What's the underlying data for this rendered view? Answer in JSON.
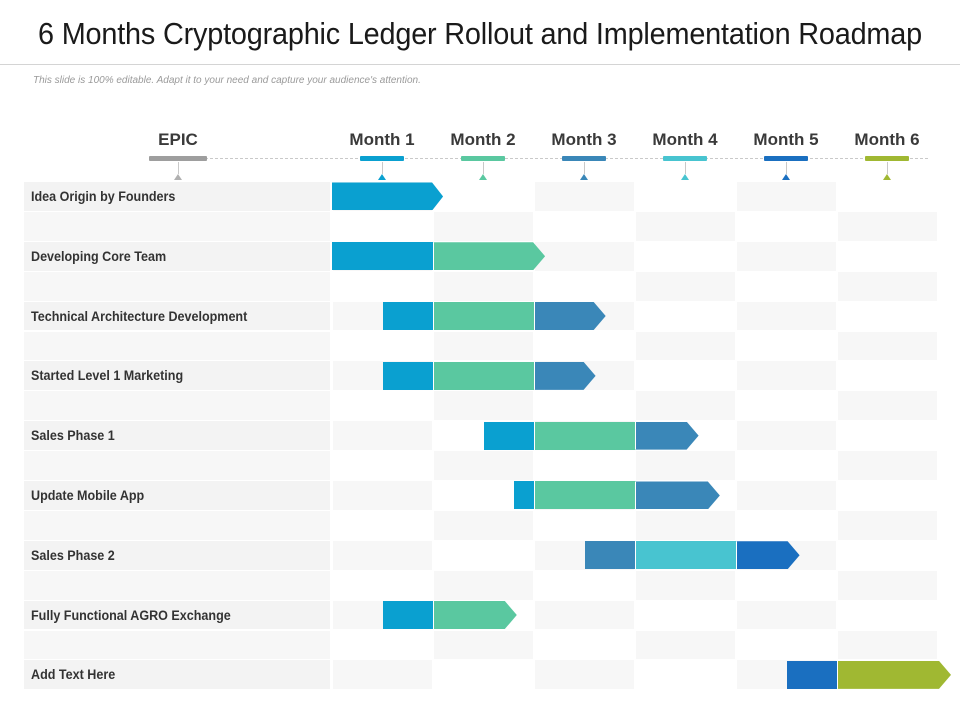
{
  "title": "6 Months Cryptographic Ledger Rollout and Implementation Roadmap",
  "subtitle": "This slide is 100% editable. Adapt it to your need and capture your audience's attention.",
  "headers": {
    "epic": "EPIC",
    "months": [
      "Month 1",
      "Month 2",
      "Month 3",
      "Month 4",
      "Month 5",
      "Month 6"
    ]
  },
  "colors": {
    "epic_marker": "#9e9e9e",
    "month_markers": [
      "#0aa0d0",
      "#5ac8a0",
      "#3a87b8",
      "#48c4d0",
      "#1a6fc0",
      "#a0b832"
    ],
    "cell_gray": "#f7f7f7",
    "cell_label": "#f3f3f3"
  },
  "chart_data": {
    "type": "gantt",
    "time_unit": "month",
    "range": [
      0,
      6
    ],
    "rows": [
      {
        "label": "Idea Origin by Founders",
        "segments": [
          {
            "start": 0,
            "end": 1.1,
            "color": "#0aa0d0",
            "arrow": true
          }
        ]
      },
      {
        "label": "Developing Core Team",
        "segments": [
          {
            "start": 0,
            "end": 1.0,
            "color": "#0aa0d0"
          },
          {
            "start": 1.0,
            "end": 2.1,
            "color": "#5ac8a0",
            "arrow": true
          }
        ]
      },
      {
        "label": "Technical Architecture Development",
        "segments": [
          {
            "start": 0.5,
            "end": 1.0,
            "color": "#0aa0d0"
          },
          {
            "start": 1.0,
            "end": 2.0,
            "color": "#5ac8a0"
          },
          {
            "start": 2.0,
            "end": 2.7,
            "color": "#3a87b8",
            "arrow": true
          }
        ]
      },
      {
        "label": "Started Level 1 Marketing",
        "segments": [
          {
            "start": 0.5,
            "end": 1.0,
            "color": "#0aa0d0"
          },
          {
            "start": 1.0,
            "end": 2.0,
            "color": "#5ac8a0"
          },
          {
            "start": 2.0,
            "end": 2.6,
            "color": "#3a87b8",
            "arrow": true
          }
        ]
      },
      {
        "label": "Sales Phase 1",
        "segments": [
          {
            "start": 1.5,
            "end": 2.0,
            "color": "#0aa0d0"
          },
          {
            "start": 2.0,
            "end": 3.0,
            "color": "#5ac8a0"
          },
          {
            "start": 3.0,
            "end": 3.62,
            "color": "#3a87b8",
            "arrow": true
          }
        ]
      },
      {
        "label": "Update Mobile App",
        "segments": [
          {
            "start": 1.8,
            "end": 2.0,
            "color": "#0aa0d0"
          },
          {
            "start": 2.0,
            "end": 3.0,
            "color": "#5ac8a0"
          },
          {
            "start": 3.0,
            "end": 3.83,
            "color": "#3a87b8",
            "arrow": true
          }
        ]
      },
      {
        "label": "Sales Phase 2",
        "segments": [
          {
            "start": 2.5,
            "end": 3.0,
            "color": "#3a87b8"
          },
          {
            "start": 3.0,
            "end": 4.0,
            "color": "#48c4d0"
          },
          {
            "start": 4.0,
            "end": 4.62,
            "color": "#1a6fc0",
            "arrow": true
          }
        ]
      },
      {
        "label": "Fully Functional AGRO Exchange",
        "segments": [
          {
            "start": 0.5,
            "end": 1.0,
            "color": "#0aa0d0"
          },
          {
            "start": 1.0,
            "end": 1.82,
            "color": "#5ac8a0",
            "arrow": true
          }
        ]
      },
      {
        "label": "Add Text Here",
        "segments": [
          {
            "start": 4.5,
            "end": 5.0,
            "color": "#1a6fc0"
          },
          {
            "start": 5.0,
            "end": 6.15,
            "color": "#a0b832",
            "arrow": true
          }
        ]
      }
    ]
  }
}
